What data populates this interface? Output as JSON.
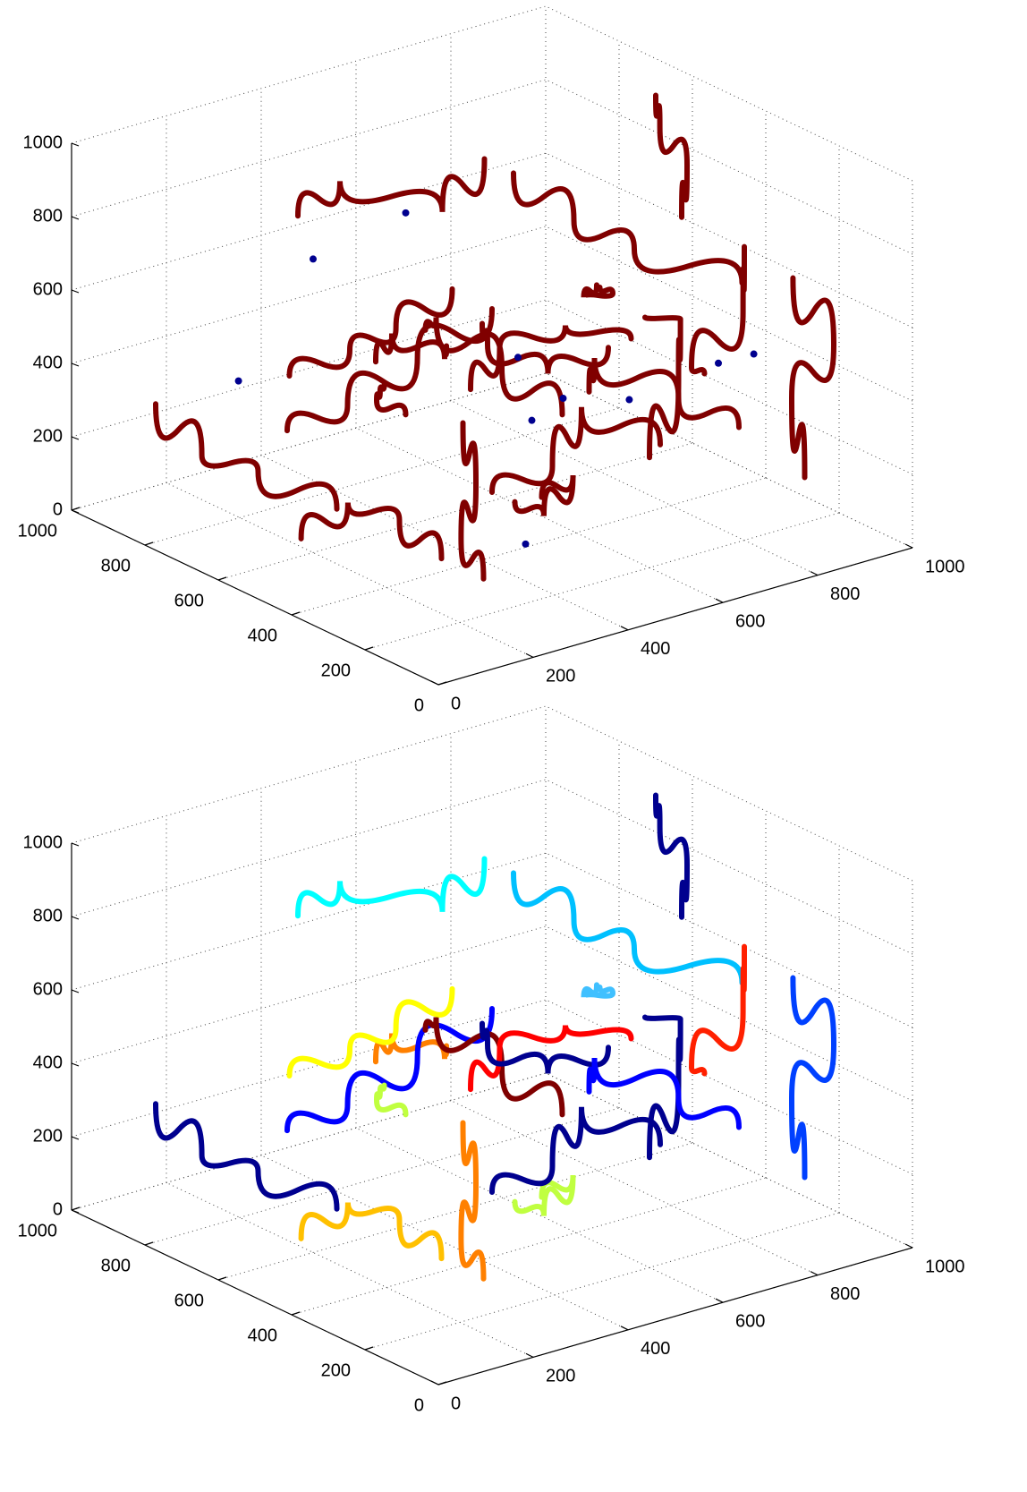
{
  "chart_data": [
    {
      "type": "line3d",
      "xlim": [
        0,
        1000
      ],
      "ylim": [
        0,
        1000
      ],
      "zlim": [
        0,
        1000
      ],
      "xticks": [
        0,
        200,
        400,
        600,
        800,
        1000
      ],
      "yticks": [
        0,
        200,
        400,
        600,
        800,
        1000
      ],
      "zticks": [
        0,
        200,
        400,
        600,
        800,
        1000
      ],
      "grid": true,
      "series": [
        {
          "color": "#800000",
          "x": [
            100,
            250,
            400,
            520
          ],
          "y": [
            300,
            450,
            500,
            650
          ],
          "z": [
            700,
            650,
            500,
            420
          ]
        },
        {
          "color": "#800000",
          "x": [
            600,
            700,
            820,
            900
          ],
          "y": [
            200,
            250,
            400,
            600
          ],
          "z": [
            300,
            450,
            500,
            380
          ]
        },
        {
          "color": "#800000",
          "x": [
            300,
            350,
            420,
            500
          ],
          "y": [
            800,
            700,
            600,
            500
          ],
          "z": [
            200,
            300,
            450,
            600
          ]
        },
        {
          "color": "#800000",
          "x": [
            50,
            150,
            250,
            300
          ],
          "y": [
            100,
            200,
            150,
            50
          ],
          "z": [
            900,
            850,
            700,
            600
          ]
        },
        {
          "color": "#800000",
          "x": [
            700,
            750,
            800,
            950
          ],
          "y": [
            700,
            600,
            500,
            400
          ],
          "z": [
            800,
            700,
            650,
            550
          ]
        },
        {
          "color": "#800000",
          "x": [
            200,
            300,
            400,
            450
          ],
          "y": [
            50,
            100,
            150,
            300
          ],
          "z": [
            400,
            300,
            350,
            200
          ]
        },
        {
          "color": "#800000",
          "x": [
            500,
            550,
            650,
            700
          ],
          "y": [
            500,
            400,
            450,
            300
          ],
          "z": [
            100,
            200,
            300,
            250
          ]
        },
        {
          "color": "#800000",
          "x": [
            850,
            900,
            950,
            980
          ],
          "y": [
            100,
            200,
            150,
            300
          ],
          "z": [
            200,
            350,
            500,
            600
          ]
        },
        {
          "color": "#800000",
          "x": [
            150,
            200,
            220,
            300
          ],
          "y": [
            600,
            500,
            400,
            350
          ],
          "z": [
            500,
            600,
            700,
            800
          ]
        },
        {
          "color": "#800000",
          "x": [
            400,
            450,
            550,
            600
          ],
          "y": [
            900,
            850,
            700,
            650
          ],
          "z": [
            700,
            800,
            750,
            900
          ]
        },
        {
          "color": "#800000",
          "x": [
            600,
            650,
            720,
            800
          ],
          "y": [
            50,
            150,
            100,
            200
          ],
          "z": [
            600,
            550,
            700,
            800
          ]
        },
        {
          "color": "#800000",
          "x": [
            100,
            120,
            200,
            250
          ],
          "y": [
            900,
            800,
            750,
            600
          ],
          "z": [
            300,
            200,
            150,
            100
          ]
        },
        {
          "color": "#800000",
          "x": [
            300,
            400,
            500,
            600
          ],
          "y": [
            300,
            350,
            300,
            250
          ],
          "z": [
            550,
            600,
            650,
            600
          ]
        },
        {
          "color": "#800000",
          "x": [
            750,
            800,
            850,
            900
          ],
          "y": [
            850,
            900,
            800,
            700
          ],
          "z": [
            300,
            200,
            150,
            250
          ]
        },
        {
          "color": "#800000",
          "x": [
            450,
            500,
            600,
            650
          ],
          "y": [
            150,
            250,
            300,
            400
          ],
          "z": [
            850,
            750,
            700,
            650
          ]
        },
        {
          "color": "#800000",
          "x": [
            20,
            80,
            150,
            200
          ],
          "y": [
            400,
            350,
            300,
            250
          ],
          "z": [
            200,
            300,
            250,
            150
          ]
        },
        {
          "color": "#800000",
          "x": [
            900,
            950,
            970,
            1000
          ],
          "y": [
            500,
            550,
            650,
            700
          ],
          "z": [
            700,
            800,
            850,
            900
          ]
        },
        {
          "color": "#800000",
          "x": [
            350,
            380,
            450,
            550
          ],
          "y": [
            600,
            650,
            750,
            800
          ],
          "z": [
            400,
            350,
            250,
            150
          ]
        },
        {
          "color": "#800000",
          "x": [
            550,
            600,
            700,
            750
          ],
          "y": [
            300,
            350,
            250,
            150
          ],
          "z": [
            450,
            500,
            400,
            350
          ]
        },
        {
          "color": "#800000",
          "x": [
            250,
            280,
            350,
            400
          ],
          "y": [
            200,
            300,
            350,
            450
          ],
          "z": [
            100,
            150,
            250,
            350
          ]
        }
      ],
      "points": {
        "color": "#00008f",
        "x": [
          120,
          400,
          650,
          820,
          300,
          550,
          900,
          200,
          700,
          480
        ],
        "y": [
          700,
          300,
          500,
          200,
          150,
          800,
          400,
          600,
          650,
          100
        ],
        "z": [
          450,
          600,
          300,
          500,
          200,
          700,
          350,
          800,
          150,
          550
        ]
      }
    },
    {
      "type": "line3d",
      "xlim": [
        0,
        1000
      ],
      "ylim": [
        0,
        1000
      ],
      "zlim": [
        0,
        1000
      ],
      "xticks": [
        0,
        200,
        400,
        600,
        800,
        1000
      ],
      "yticks": [
        0,
        200,
        400,
        600,
        800,
        1000
      ],
      "zticks": [
        0,
        200,
        400,
        600,
        800,
        1000
      ],
      "grid": true,
      "series": [
        {
          "color": "#ff8000",
          "x": [
            100,
            250,
            400,
            520
          ],
          "y": [
            300,
            450,
            500,
            650
          ],
          "z": [
            700,
            650,
            500,
            420
          ]
        },
        {
          "color": "#00008f",
          "x": [
            600,
            700,
            820,
            900
          ],
          "y": [
            200,
            250,
            400,
            600
          ],
          "z": [
            300,
            450,
            500,
            380
          ]
        },
        {
          "color": "#0000ff",
          "x": [
            300,
            350,
            420,
            500
          ],
          "y": [
            800,
            700,
            600,
            500
          ],
          "z": [
            200,
            300,
            450,
            600
          ]
        },
        {
          "color": "#800000",
          "x": [
            50,
            150,
            250,
            300
          ],
          "y": [
            100,
            200,
            150,
            50
          ],
          "z": [
            900,
            850,
            700,
            600
          ]
        },
        {
          "color": "#00c0ff",
          "x": [
            700,
            750,
            800,
            950
          ],
          "y": [
            700,
            600,
            500,
            400
          ],
          "z": [
            800,
            700,
            650,
            550
          ]
        },
        {
          "color": "#c0ff40",
          "x": [
            200,
            300,
            400,
            450
          ],
          "y": [
            50,
            100,
            150,
            300
          ],
          "z": [
            400,
            300,
            350,
            200
          ]
        },
        {
          "color": "#00008f",
          "x": [
            500,
            550,
            650,
            700
          ],
          "y": [
            500,
            400,
            450,
            300
          ],
          "z": [
            100,
            200,
            300,
            250
          ]
        },
        {
          "color": "#0040ff",
          "x": [
            850,
            900,
            950,
            980
          ],
          "y": [
            100,
            200,
            150,
            300
          ],
          "z": [
            200,
            350,
            500,
            600
          ]
        },
        {
          "color": "#ffff00",
          "x": [
            150,
            200,
            220,
            300
          ],
          "y": [
            600,
            500,
            400,
            350
          ],
          "z": [
            500,
            600,
            700,
            800
          ]
        },
        {
          "color": "#00ffff",
          "x": [
            400,
            450,
            550,
            600
          ],
          "y": [
            900,
            850,
            700,
            650
          ],
          "z": [
            700,
            800,
            750,
            900
          ]
        },
        {
          "color": "#ff2000",
          "x": [
            600,
            650,
            720,
            800
          ],
          "y": [
            50,
            150,
            100,
            200
          ],
          "z": [
            600,
            550,
            700,
            800
          ]
        },
        {
          "color": "#00008f",
          "x": [
            100,
            120,
            200,
            250
          ],
          "y": [
            900,
            800,
            750,
            600
          ],
          "z": [
            300,
            200,
            150,
            100
          ]
        },
        {
          "color": "#ff0000",
          "x": [
            300,
            400,
            500,
            600
          ],
          "y": [
            300,
            350,
            300,
            250
          ],
          "z": [
            550,
            600,
            650,
            600
          ]
        },
        {
          "color": "#00008f",
          "x": [
            750,
            800,
            850,
            900
          ],
          "y": [
            850,
            900,
            800,
            700
          ],
          "z": [
            300,
            200,
            150,
            250
          ]
        },
        {
          "color": "#40c0ff",
          "x": [
            450,
            500,
            600,
            650
          ],
          "y": [
            150,
            250,
            300,
            400
          ],
          "z": [
            850,
            750,
            700,
            650
          ]
        },
        {
          "color": "#ffc000",
          "x": [
            20,
            80,
            150,
            200
          ],
          "y": [
            400,
            350,
            300,
            250
          ],
          "z": [
            200,
            300,
            250,
            150
          ]
        },
        {
          "color": "#00008f",
          "x": [
            900,
            950,
            970,
            1000
          ],
          "y": [
            500,
            550,
            650,
            700
          ],
          "z": [
            700,
            800,
            850,
            900
          ]
        },
        {
          "color": "#c0ff40",
          "x": [
            350,
            380,
            450,
            550
          ],
          "y": [
            600,
            650,
            750,
            800
          ],
          "z": [
            400,
            350,
            250,
            150
          ]
        },
        {
          "color": "#0000ff",
          "x": [
            550,
            600,
            700,
            750
          ],
          "y": [
            300,
            350,
            250,
            150
          ],
          "z": [
            450,
            500,
            400,
            350
          ]
        },
        {
          "color": "#ff8000",
          "x": [
            250,
            280,
            350,
            400
          ],
          "y": [
            200,
            300,
            350,
            450
          ],
          "z": [
            100,
            150,
            250,
            350
          ]
        }
      ]
    }
  ]
}
